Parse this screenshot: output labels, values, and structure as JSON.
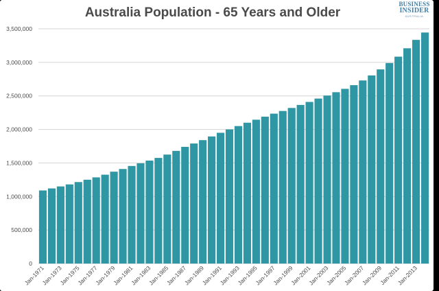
{
  "colors": {
    "bar": "#2f96a3",
    "grid": "#d4d4d4",
    "text": "#4a4a4a",
    "logo": "#3f7fa8"
  },
  "logo": {
    "line1": "BUSINESS",
    "line2": "INSIDER",
    "line3": "AUSTRALIA"
  },
  "chart_data": {
    "type": "bar",
    "title": "Australia Population - 65 Years and Older",
    "xlabel": "",
    "ylabel": "",
    "ylim": [
      0,
      3500000
    ],
    "yticks": [
      0,
      500000,
      1000000,
      1500000,
      2000000,
      2500000,
      3000000,
      3500000
    ],
    "ytick_labels": [
      "0",
      "500,000",
      "1,000,000",
      "1,500,000",
      "2,000,000",
      "2,500,000",
      "3,000,000",
      "3,500,000"
    ],
    "grid": true,
    "legend": "none",
    "categories": [
      "Jan-1971",
      "Jan-1972",
      "Jan-1973",
      "Jan-1974",
      "Jan-1975",
      "Jan-1976",
      "Jan-1977",
      "Jan-1978",
      "Jan-1979",
      "Jan-1980",
      "Jan-1981",
      "Jan-1982",
      "Jan-1983",
      "Jan-1984",
      "Jan-1985",
      "Jan-1986",
      "Jan-1987",
      "Jan-1988",
      "Jan-1989",
      "Jan-1990",
      "Jan-1991",
      "Jan-1992",
      "Jan-1993",
      "Jan-1994",
      "Jan-1995",
      "Jan-1996",
      "Jan-1997",
      "Jan-1998",
      "Jan-1999",
      "Jan-2000",
      "Jan-2001",
      "Jan-2002",
      "Jan-2003",
      "Jan-2004",
      "Jan-2005",
      "Jan-2006",
      "Jan-2007",
      "Jan-2008",
      "Jan-2009",
      "Jan-2010",
      "Jan-2011",
      "Jan-2012",
      "Jan-2013",
      "Jan-2014"
    ],
    "x_tick_labels": [
      "Jan-1971",
      "",
      "Jan-1973",
      "",
      "Jan-1975",
      "",
      "Jan-1977",
      "",
      "Jan-1979",
      "",
      "Jan-1981",
      "",
      "Jan-1983",
      "",
      "Jan-1985",
      "",
      "Jan-1987",
      "",
      "Jan-1989",
      "",
      "Jan-1991",
      "",
      "Jan-1993",
      "",
      "Jan-1995",
      "",
      "Jan-1997",
      "",
      "Jan-1999",
      "",
      "Jan-2001",
      "",
      "Jan-2003",
      "",
      "Jan-2005",
      "",
      "Jan-2007",
      "",
      "Jan-2009",
      "",
      "Jan-2011",
      "",
      "Jan-2013",
      ""
    ],
    "values": [
      1090000,
      1120000,
      1150000,
      1180000,
      1215000,
      1250000,
      1285000,
      1325000,
      1370000,
      1410000,
      1455000,
      1495000,
      1535000,
      1575000,
      1625000,
      1680000,
      1740000,
      1790000,
      1840000,
      1895000,
      1950000,
      2000000,
      2050000,
      2100000,
      2145000,
      2190000,
      2235000,
      2275000,
      2320000,
      2365000,
      2410000,
      2460000,
      2505000,
      2555000,
      2605000,
      2660000,
      2730000,
      2805000,
      2895000,
      2990000,
      3085000,
      3210000,
      3335000,
      3445000
    ]
  }
}
